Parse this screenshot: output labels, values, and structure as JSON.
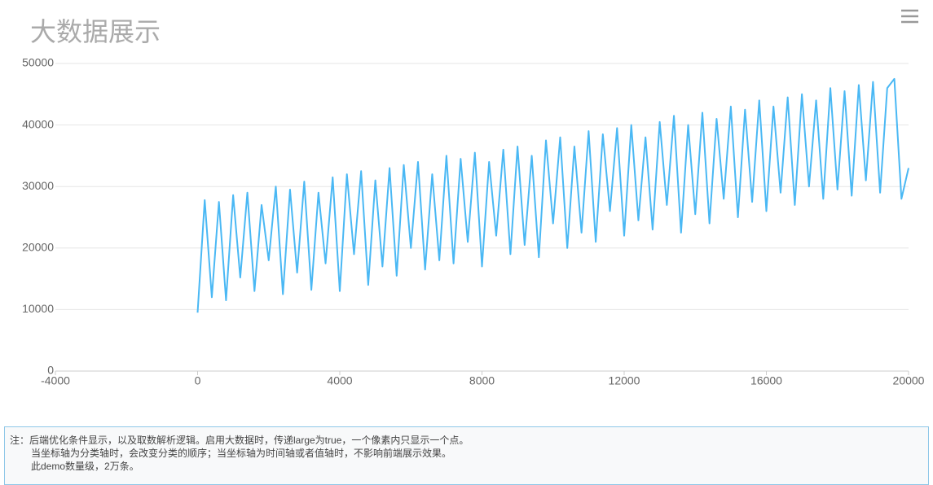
{
  "chart_data": {
    "type": "line",
    "title": "大数据展示",
    "color": "#4ab8f4",
    "grid": true,
    "xlim": [
      -4000,
      20000
    ],
    "xticks": [
      -4000,
      0,
      4000,
      8000,
      12000,
      16000,
      20000
    ],
    "ylim": [
      0,
      50000
    ],
    "yticks": [
      0,
      10000,
      20000,
      30000,
      40000,
      50000
    ],
    "x": [
      0,
      200,
      400,
      600,
      800,
      1000,
      1200,
      1400,
      1600,
      1800,
      2000,
      2200,
      2400,
      2600,
      2800,
      3000,
      3200,
      3400,
      3600,
      3800,
      4000,
      4200,
      4400,
      4600,
      4800,
      5000,
      5200,
      5400,
      5600,
      5800,
      6000,
      6200,
      6400,
      6600,
      6800,
      7000,
      7200,
      7400,
      7600,
      7800,
      8000,
      8200,
      8400,
      8600,
      8800,
      9000,
      9200,
      9400,
      9600,
      9800,
      10000,
      10200,
      10400,
      10600,
      10800,
      11000,
      11200,
      11400,
      11600,
      11800,
      12000,
      12200,
      12400,
      12600,
      12800,
      13000,
      13200,
      13400,
      13600,
      13800,
      14000,
      14200,
      14400,
      14600,
      14800,
      15000,
      15200,
      15400,
      15600,
      15800,
      16000,
      16200,
      16400,
      16600,
      16800,
      17000,
      17200,
      17400,
      17600,
      17800,
      18000,
      18200,
      18400,
      18600,
      18800,
      19000,
      19200,
      19400,
      19600,
      19800,
      20000
    ],
    "values": [
      9500,
      27800,
      12000,
      27500,
      11500,
      28600,
      15200,
      29000,
      13000,
      27000,
      18000,
      30000,
      12500,
      29500,
      16000,
      30800,
      13200,
      29000,
      17500,
      31500,
      13000,
      32000,
      19000,
      32500,
      14000,
      31000,
      17000,
      33000,
      15500,
      33500,
      20000,
      34000,
      16500,
      32000,
      18000,
      35000,
      17500,
      34500,
      21000,
      35500,
      17000,
      34000,
      22000,
      36000,
      19000,
      36500,
      20500,
      35000,
      18500,
      37500,
      24000,
      38000,
      20000,
      36500,
      22500,
      39000,
      21000,
      38500,
      26000,
      39500,
      22000,
      40000,
      24500,
      38000,
      23000,
      40500,
      27000,
      41500,
      22500,
      40000,
      25500,
      42000,
      24000,
      41000,
      28000,
      43000,
      25000,
      42500,
      27500,
      44000,
      26000,
      43000,
      29000,
      44500,
      27000,
      45000,
      30000,
      44000,
      28000,
      46000,
      29500,
      45500,
      28500,
      46500,
      31000,
      47000,
      29000,
      46000,
      47500,
      28000,
      33000
    ]
  },
  "note": {
    "lines": [
      "注：后端优化条件显示，以及取数解析逻辑。启用大数据时，传递large为true，一个像素内只显示一个点。",
      "当坐标轴为分类轴时，会改变分类的顺序；当坐标轴为时间轴或者值轴时，不影响前端展示效果。",
      "此demo数量级，2万条。"
    ]
  }
}
